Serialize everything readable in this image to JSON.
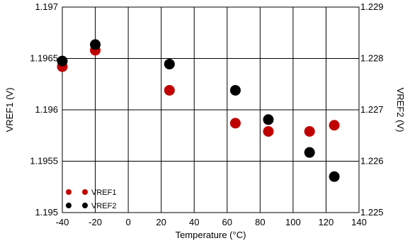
{
  "chart_data": {
    "type": "scatter",
    "xlabel": "Temperature (°C)",
    "ylabel_left": "VREF1 (V)",
    "ylabel_right": "VREF2 (V)",
    "xlim": [
      -40,
      140
    ],
    "xticks": [
      -40,
      -20,
      0,
      20,
      40,
      60,
      80,
      100,
      120,
      140
    ],
    "xtick_labels": [
      "-40",
      "-20",
      "0",
      "20",
      "40",
      "60",
      "80",
      "100",
      "120",
      "140"
    ],
    "ylim_left": [
      1.195,
      1.197
    ],
    "yticks_left": [
      1.195,
      1.1955,
      1.196,
      1.1965,
      1.197
    ],
    "ytick_labels_left": [
      "1.195",
      "1.1955",
      "1.196",
      "1.1965",
      "1.197"
    ],
    "ylim_right": [
      1.225,
      1.229
    ],
    "yticks_right": [
      1.225,
      1.226,
      1.227,
      1.228,
      1.229
    ],
    "ytick_labels_right": [
      "1.225",
      "1.226",
      "1.227",
      "1.228",
      "1.229"
    ],
    "grid": true,
    "legend_position": "bottom-left",
    "series": [
      {
        "name": "VREF1",
        "axis": "left",
        "color": "#c00000",
        "x": [
          -40,
          -20,
          25,
          65,
          85,
          110,
          125
        ],
        "y": [
          1.19642,
          1.19658,
          1.19619,
          1.19587,
          1.19579,
          1.19579,
          1.19585
        ]
      },
      {
        "name": "VREF2",
        "axis": "right",
        "color": "#000000",
        "x": [
          -40,
          -20,
          25,
          65,
          85,
          110,
          125
        ],
        "y": [
          1.22795,
          1.22827,
          1.22789,
          1.22738,
          1.22681,
          1.22617,
          1.2257
        ]
      }
    ]
  }
}
